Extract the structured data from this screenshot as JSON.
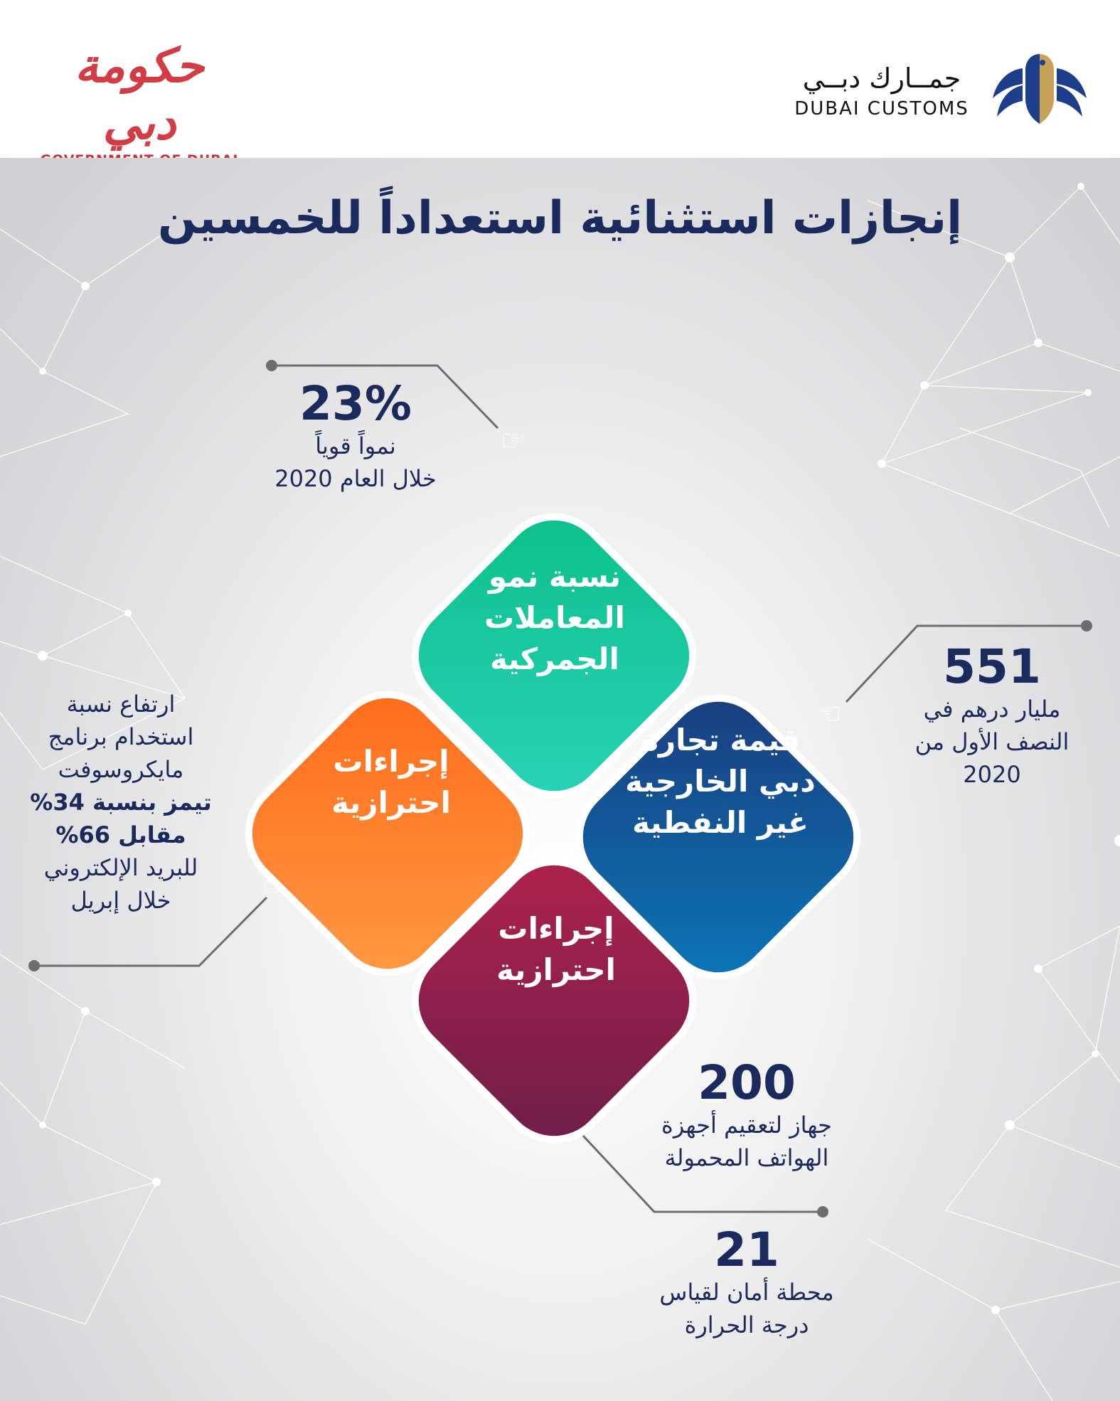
{
  "header": {
    "gov_logo_ar": "حكومة دبي",
    "gov_logo_en": "GOVERNMENT OF DUBAI",
    "customs_logo_ar": "جمــارك دبــي",
    "customs_logo_en": "DUBAI CUSTOMS"
  },
  "title": "إنجازات استثنائية استعداداً للخمسين",
  "diamonds": {
    "green": "نسبة نمو المعاملات الجمركية",
    "orange": "إجراءات احترازية",
    "blue": "قيمة تجارة دبي الخارجية غير النفطية",
    "red": "إجراءات احترازية"
  },
  "stats": {
    "growth": {
      "value": "23%",
      "line1": "نمواً قوياً",
      "line2": "خلال العام 2020"
    },
    "trade": {
      "value": "551",
      "line1": "مليار درهم في",
      "line2": "النصف الأول من",
      "line3": "2020"
    },
    "teams": {
      "line1": "ارتفاع نسبة",
      "line2": "استخدام برنامج",
      "line3": "مايكروسوفت",
      "line4": "تيمز بنسبة 34%",
      "line5": "مقابل 66%",
      "line6": "للبريد الإلكتروني",
      "line7": "خلال إبريل"
    },
    "devices": {
      "value": "200",
      "line1": "جهاز لتعقيم أجهزة",
      "line2": "الهواتف المحمولة"
    },
    "stations": {
      "value": "21",
      "line1": "محطة أمان لقياس",
      "line2": "درجة الحرارة"
    }
  },
  "colors": {
    "navy": "#1b2a5c",
    "green": "#0cbf8a",
    "orange": "#ff7a2a",
    "blue": "#14508f",
    "crimson": "#8f1f4b",
    "gov_red": "#d23c44"
  }
}
